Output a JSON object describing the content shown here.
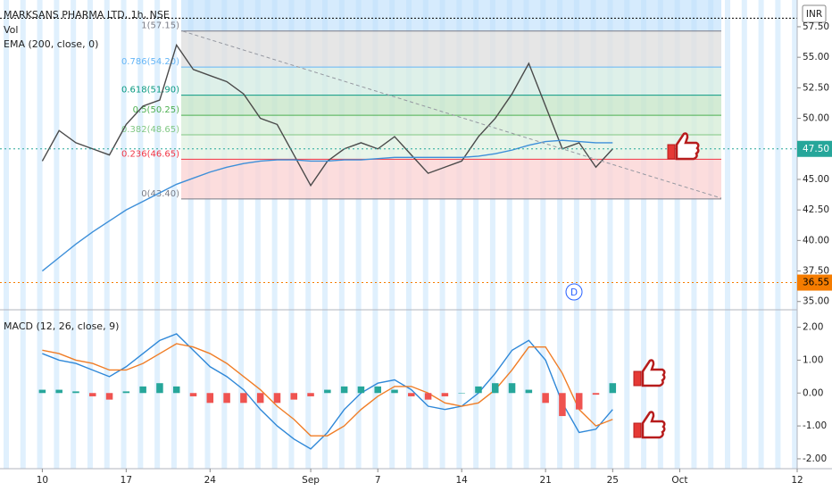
{
  "chart_data": {
    "type": "stock",
    "title": "MARKSANS PHARMA LTD, 1h, NSE",
    "volume_label": "Vol",
    "currency": "INR",
    "macd_title": "MACD (12, 26, close, 9)",
    "dividend_marker": "D",
    "categories": [
      "10",
      null,
      null,
      null,
      null,
      "17",
      null,
      null,
      null,
      null,
      "24",
      null,
      null,
      null,
      null,
      null,
      "Sep",
      null,
      null,
      null,
      "7",
      null,
      null,
      null,
      null,
      "14",
      null,
      null,
      null,
      null,
      "21",
      null,
      null,
      null,
      "25",
      null,
      null,
      null,
      "Oct",
      null,
      null,
      null,
      null,
      null,
      null,
      "12"
    ],
    "series": [
      {
        "color": "#4a4a4a",
        "values": [
          46.5,
          49,
          48,
          47.5,
          47,
          49.5,
          51,
          51.5,
          56,
          54,
          53.5,
          53,
          52,
          50,
          49.5,
          47,
          44.5,
          46.5,
          47.5,
          48,
          47.5,
          48.5,
          47,
          45.5,
          46,
          46.5,
          48.5,
          50,
          52,
          54.5,
          51,
          47.5,
          48,
          46,
          47.5,
          null,
          null,
          null,
          null,
          null,
          null,
          null,
          null,
          null,
          null,
          null
        ]
      },
      {
        "name": "EMA (200, close, 0)",
        "color": "#3d8fd9",
        "values": [
          37.5,
          38.6,
          39.7,
          40.7,
          41.6,
          42.5,
          43.2,
          43.9,
          44.6,
          45.1,
          45.6,
          46.0,
          46.3,
          46.5,
          46.6,
          46.6,
          46.5,
          46.5,
          46.6,
          46.6,
          46.7,
          46.8,
          46.8,
          46.8,
          46.8,
          46.8,
          46.9,
          47.1,
          47.4,
          47.8,
          48.1,
          48.2,
          48.1,
          48.0,
          48.0,
          null,
          null,
          null,
          null,
          null,
          null,
          null,
          null,
          null,
          null,
          null
        ]
      },
      {
        "color": "#2f88d8",
        "axis": "y2",
        "values": [
          1.2,
          1.0,
          0.9,
          0.7,
          0.5,
          0.8,
          1.2,
          1.6,
          1.8,
          1.3,
          0.8,
          0.5,
          0.1,
          -0.5,
          -1.0,
          -1.4,
          -1.7,
          -1.2,
          -0.5,
          0.0,
          0.3,
          0.4,
          0.1,
          -0.4,
          -0.5,
          -0.4,
          0.0,
          0.6,
          1.3,
          1.6,
          1.0,
          -0.3,
          -1.2,
          -1.1,
          -0.5,
          null,
          null,
          null,
          null,
          null,
          null,
          null,
          null,
          null,
          null,
          null
        ]
      },
      {
        "color": "#f07d26",
        "axis": "y2",
        "values": [
          1.3,
          1.2,
          1.0,
          0.9,
          0.7,
          0.7,
          0.9,
          1.2,
          1.5,
          1.4,
          1.2,
          0.9,
          0.5,
          0.1,
          -0.4,
          -0.8,
          -1.3,
          -1.3,
          -1.0,
          -0.5,
          -0.1,
          0.2,
          0.2,
          0.0,
          -0.3,
          -0.4,
          -0.3,
          0.1,
          0.7,
          1.4,
          1.4,
          0.6,
          -0.5,
          -1.0,
          -0.8,
          null,
          null,
          null,
          null,
          null,
          null,
          null,
          null,
          null,
          null,
          null
        ]
      },
      {
        "type": "bar",
        "axis": "y2",
        "color": "#26a69a",
        "negative_color": "#ef5350",
        "values": [
          0.1,
          0.1,
          0.05,
          -0.1,
          -0.2,
          0.05,
          0.2,
          0.3,
          0.2,
          -0.1,
          -0.3,
          -0.3,
          -0.3,
          -0.3,
          -0.3,
          -0.2,
          -0.1,
          0.1,
          0.2,
          0.2,
          0.2,
          0.1,
          -0.1,
          -0.2,
          -0.1,
          0,
          0.2,
          0.3,
          0.3,
          0.1,
          -0.3,
          -0.7,
          -0.5,
          -0.05,
          0.3,
          null,
          null,
          null,
          null,
          null,
          null,
          null,
          null,
          null,
          null,
          null
        ]
      }
    ],
    "ylim": [
      34.47,
      59.69
    ],
    "yticks": [
      {
        "value": 35,
        "label": "35.00"
      },
      {
        "value": 37.5,
        "label": "37.50"
      },
      {
        "value": 40,
        "label": "40.00"
      },
      {
        "value": 42.5,
        "label": "42.50"
      },
      {
        "value": 45,
        "label": "45.00"
      },
      {
        "value": 47.5,
        "label": "47.50"
      },
      {
        "value": 50,
        "label": "50.00"
      },
      {
        "value": 52.5,
        "label": "52.50"
      },
      {
        "value": 55,
        "label": "55.00"
      },
      {
        "value": 57.5,
        "label": "57.50"
      }
    ],
    "y2lim": [
      -2.3,
      2.45
    ],
    "y2ticks": [
      {
        "value": -2,
        "label": "-2.00"
      },
      {
        "value": -1,
        "label": "-1.00"
      },
      {
        "value": 0,
        "label": "0.00"
      },
      {
        "value": 1,
        "label": "1.00"
      },
      {
        "value": 2,
        "label": "2.00"
      }
    ],
    "fib_levels": [
      {
        "value": 57.15,
        "label": "1(57.15)",
        "color": "#787b86"
      },
      {
        "value": 54.2,
        "label": "0.786(54.20)",
        "color": "#64b5f6"
      },
      {
        "value": 51.9,
        "label": "0.618(51.90)",
        "color": "#089981"
      },
      {
        "value": 50.25,
        "label": "0.5(50.25)",
        "color": "#4caf50"
      },
      {
        "value": 48.65,
        "label": "0.382(48.65)",
        "color": "#81c784"
      },
      {
        "value": 46.65,
        "label": "0.236(46.65)",
        "color": "#f23645"
      },
      {
        "value": 43.4,
        "label": "0(43.40)",
        "color": "#787b86"
      }
    ],
    "top_line": 58.2,
    "price_markers": [
      {
        "value": 47.5,
        "label": "47.50",
        "color": "#26a69a"
      },
      {
        "value": 36.55,
        "label": "36.55",
        "color": "#f57c00"
      }
    ]
  }
}
